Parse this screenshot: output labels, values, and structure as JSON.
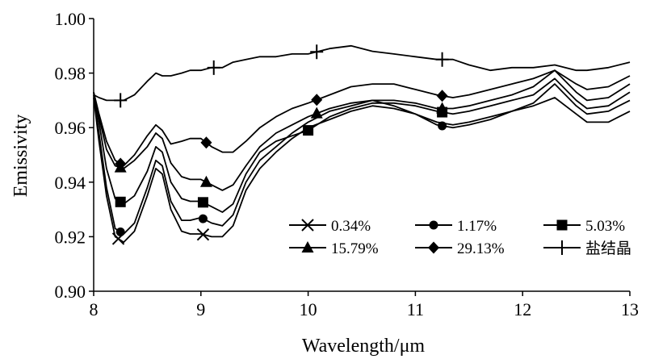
{
  "chart_data": {
    "type": "line",
    "title": "",
    "xlabel": "Wavelength/μm",
    "ylabel": "Emissivity",
    "xlim": [
      8,
      13
    ],
    "ylim": [
      0.9,
      1.0
    ],
    "x_ticks": [
      "8",
      "9",
      "10",
      "11",
      "12",
      "13"
    ],
    "y_ticks": [
      "0.90",
      "0.92",
      "0.94",
      "0.96",
      "0.98",
      "1.00"
    ],
    "grid": false,
    "legend_position": "bottom-right inside plot",
    "x": [
      8.0,
      8.05,
      8.12,
      8.2,
      8.28,
      8.38,
      8.5,
      8.58,
      8.64,
      8.72,
      8.82,
      8.9,
      9.0,
      9.1,
      9.2,
      9.3,
      9.42,
      9.55,
      9.7,
      9.85,
      10.0,
      10.2,
      10.4,
      10.6,
      10.8,
      11.0,
      11.2,
      11.35,
      11.5,
      11.7,
      11.9,
      12.1,
      12.3,
      12.5,
      12.6,
      12.8,
      13.0
    ],
    "series": [
      {
        "name": "0.34%",
        "marker": "x",
        "marker_x": [
          8.23,
          9.02
        ],
        "values": [
          0.971,
          0.955,
          0.935,
          0.92,
          0.918,
          0.922,
          0.935,
          0.945,
          0.943,
          0.93,
          0.922,
          0.921,
          0.921,
          0.92,
          0.92,
          0.924,
          0.937,
          0.945,
          0.951,
          0.956,
          0.96,
          0.963,
          0.966,
          0.968,
          0.967,
          0.965,
          0.962,
          0.961,
          0.962,
          0.964,
          0.966,
          0.968,
          0.971,
          0.965,
          0.962,
          0.962,
          0.966
        ]
      },
      {
        "name": "1.17%",
        "marker": "circle",
        "marker_x": [
          8.25,
          9.02,
          11.25
        ],
        "values": [
          0.972,
          0.958,
          0.938,
          0.923,
          0.921,
          0.925,
          0.938,
          0.948,
          0.946,
          0.933,
          0.926,
          0.926,
          0.927,
          0.925,
          0.924,
          0.928,
          0.94,
          0.948,
          0.953,
          0.958,
          0.962,
          0.966,
          0.968,
          0.97,
          0.968,
          0.965,
          0.961,
          0.96,
          0.961,
          0.963,
          0.966,
          0.969,
          0.976,
          0.968,
          0.965,
          0.966,
          0.97
        ]
      },
      {
        "name": "5.03%",
        "marker": "square",
        "marker_x": [
          8.25,
          9.02,
          10.0,
          11.25
        ],
        "values": [
          0.973,
          0.962,
          0.945,
          0.934,
          0.932,
          0.935,
          0.944,
          0.953,
          0.951,
          0.94,
          0.934,
          0.933,
          0.933,
          0.931,
          0.929,
          0.932,
          0.943,
          0.951,
          0.955,
          0.957,
          0.959,
          0.964,
          0.967,
          0.969,
          0.969,
          0.968,
          0.966,
          0.965,
          0.966,
          0.968,
          0.97,
          0.972,
          0.978,
          0.97,
          0.967,
          0.968,
          0.973
        ]
      },
      {
        "name": "15.79%",
        "marker": "triangle",
        "marker_x": [
          8.25,
          9.05,
          10.08,
          11.25
        ],
        "values": [
          0.973,
          0.964,
          0.952,
          0.946,
          0.945,
          0.948,
          0.953,
          0.958,
          0.956,
          0.947,
          0.942,
          0.941,
          0.941,
          0.939,
          0.937,
          0.939,
          0.946,
          0.953,
          0.958,
          0.961,
          0.964,
          0.967,
          0.969,
          0.97,
          0.97,
          0.969,
          0.967,
          0.967,
          0.968,
          0.97,
          0.972,
          0.975,
          0.981,
          0.973,
          0.97,
          0.971,
          0.976
        ]
      },
      {
        "name": "29.13%",
        "marker": "diamond",
        "marker_x": [
          8.25,
          9.05,
          10.08,
          11.25
        ],
        "values": [
          0.973,
          0.965,
          0.955,
          0.948,
          0.946,
          0.95,
          0.957,
          0.961,
          0.959,
          0.954,
          0.955,
          0.956,
          0.956,
          0.953,
          0.951,
          0.951,
          0.955,
          0.96,
          0.964,
          0.967,
          0.969,
          0.972,
          0.975,
          0.976,
          0.976,
          0.974,
          0.972,
          0.971,
          0.972,
          0.974,
          0.976,
          0.978,
          0.981,
          0.976,
          0.974,
          0.975,
          0.979
        ]
      },
      {
        "name": "盐结晶",
        "marker": "plus",
        "marker_x": [
          8.25,
          9.12,
          10.08,
          11.25
        ],
        "values": [
          0.972,
          0.971,
          0.97,
          0.97,
          0.97,
          0.972,
          0.977,
          0.98,
          0.979,
          0.979,
          0.98,
          0.981,
          0.981,
          0.982,
          0.982,
          0.984,
          0.985,
          0.986,
          0.986,
          0.987,
          0.987,
          0.989,
          0.99,
          0.988,
          0.987,
          0.986,
          0.985,
          0.985,
          0.983,
          0.981,
          0.982,
          0.982,
          0.983,
          0.981,
          0.981,
          0.982,
          0.984
        ]
      }
    ]
  }
}
